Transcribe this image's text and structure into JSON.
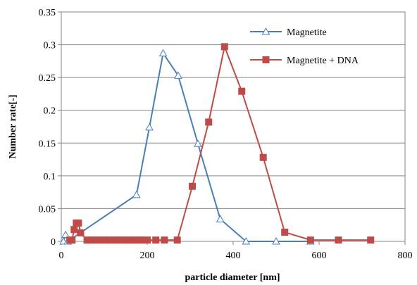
{
  "chart_data": {
    "type": "line",
    "title": "",
    "xlabel": "particle diameter [nm]",
    "ylabel": "Number rate[-]",
    "xlim": [
      0,
      800
    ],
    "ylim": [
      0,
      0.35
    ],
    "x_ticks": [
      "0",
      "200",
      "400",
      "600",
      "800"
    ],
    "y_ticks": [
      "0",
      "0.05",
      "0.1",
      "0.15",
      "0.2",
      "0.25",
      "0.3",
      "0.35"
    ],
    "grid": "horizontal",
    "legend_position": "top-right",
    "series": [
      {
        "name": "Magnetite",
        "color": "#4a7ebb",
        "marker": "triangle-open",
        "x": [
          5,
          10,
          15,
          175,
          205,
          237,
          272,
          318,
          370,
          430,
          500,
          580
        ],
        "y": [
          0,
          0.01,
          0,
          0.071,
          0.174,
          0.287,
          0.253,
          0.149,
          0.034,
          0,
          0,
          0
        ]
      },
      {
        "name": "Magnetite + DNA",
        "color": "#be4b48",
        "marker": "square",
        "x": [
          20,
          25,
          30,
          35,
          40,
          45,
          60,
          70,
          80,
          90,
          100,
          110,
          120,
          130,
          140,
          150,
          160,
          170,
          180,
          190,
          200,
          220,
          240,
          270,
          305,
          343,
          380,
          420,
          470,
          520,
          580,
          645,
          720
        ],
        "y": [
          0.002,
          0.002,
          0.018,
          0.028,
          0.028,
          0.013,
          0.002,
          0.002,
          0.002,
          0.002,
          0.002,
          0.002,
          0.002,
          0.002,
          0.002,
          0.002,
          0.002,
          0.002,
          0.002,
          0.002,
          0.002,
          0.002,
          0.002,
          0.002,
          0.084,
          0.182,
          0.297,
          0.229,
          0.128,
          0.014,
          0.002,
          0.002,
          0.002
        ]
      }
    ]
  }
}
